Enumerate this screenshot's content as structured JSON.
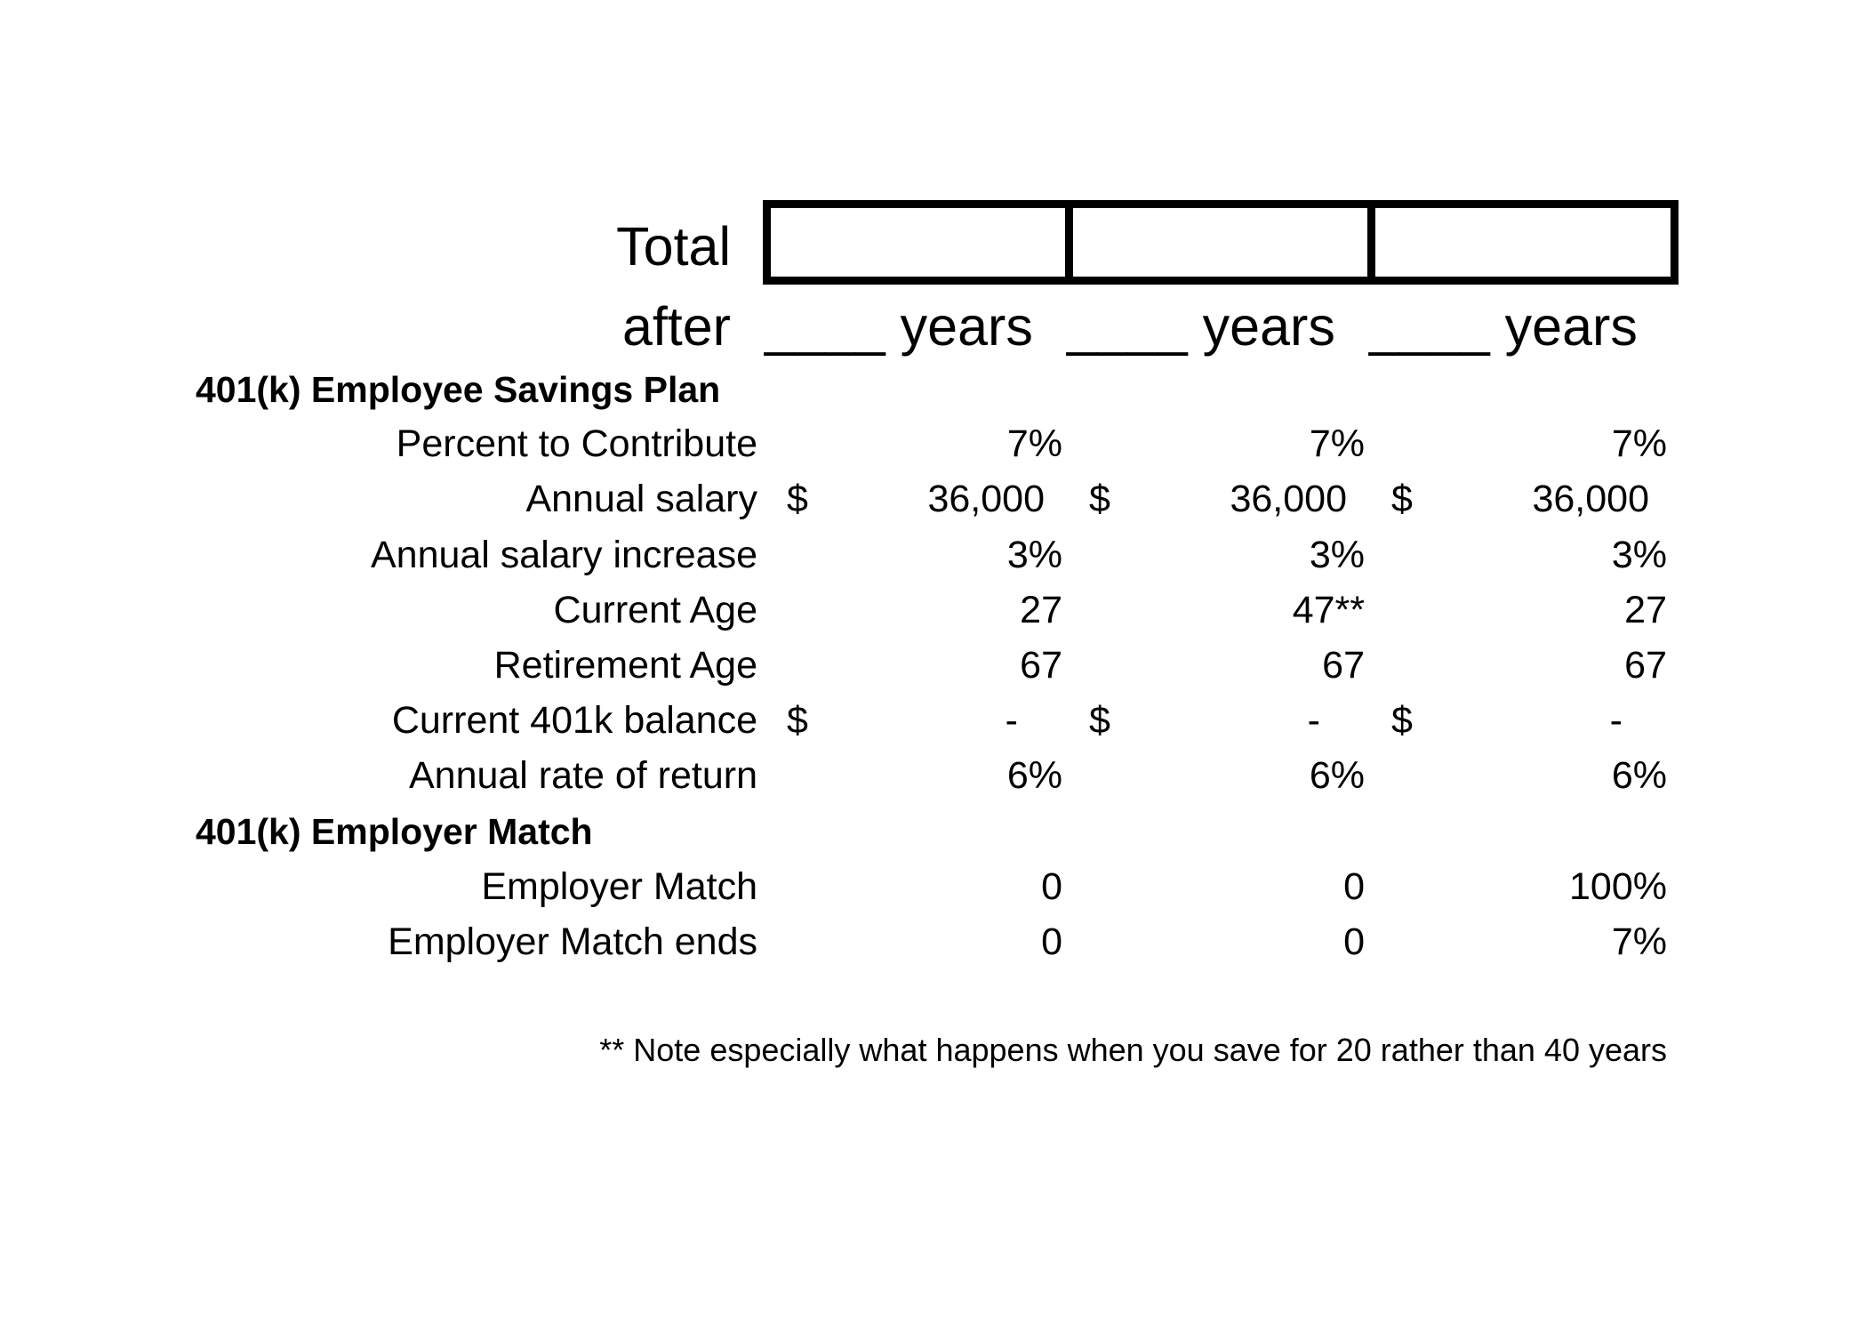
{
  "header": {
    "total_label": "Total",
    "after_label": "after",
    "years_labels": [
      "____ years",
      "____ years",
      "____ years"
    ]
  },
  "sections": {
    "employee_title": "401(k) Employee Savings Plan",
    "employer_title": "401(k) Employer Match"
  },
  "rows": {
    "percent_to_contribute": {
      "label": "Percent to Contribute",
      "values": [
        "7%",
        "7%",
        "7%"
      ]
    },
    "annual_salary": {
      "label": "Annual salary",
      "currency": "$",
      "values": [
        "36,000",
        "36,000",
        "36,000"
      ]
    },
    "annual_salary_increase": {
      "label": "Annual salary increase",
      "values": [
        "3%",
        "3%",
        "3%"
      ]
    },
    "current_age": {
      "label": "Current Age",
      "values": [
        "27",
        "47**",
        "27"
      ]
    },
    "retirement_age": {
      "label": "Retirement Age",
      "values": [
        "67",
        "67",
        "67"
      ]
    },
    "current_401k_balance": {
      "label": "Current 401k balance",
      "currency": "$",
      "values": [
        "-",
        "-",
        "-"
      ]
    },
    "annual_rate_of_return": {
      "label": "Annual rate of return",
      "values": [
        "6%",
        "6%",
        "6%"
      ]
    },
    "employer_match": {
      "label": "Employer Match",
      "values": [
        "0",
        "0",
        "100%"
      ]
    },
    "employer_match_ends": {
      "label": "Employer Match ends",
      "values": [
        "0",
        "0",
        "7%"
      ]
    }
  },
  "footnote": "** Note especially what happens when you save for 20 rather than 40 years"
}
